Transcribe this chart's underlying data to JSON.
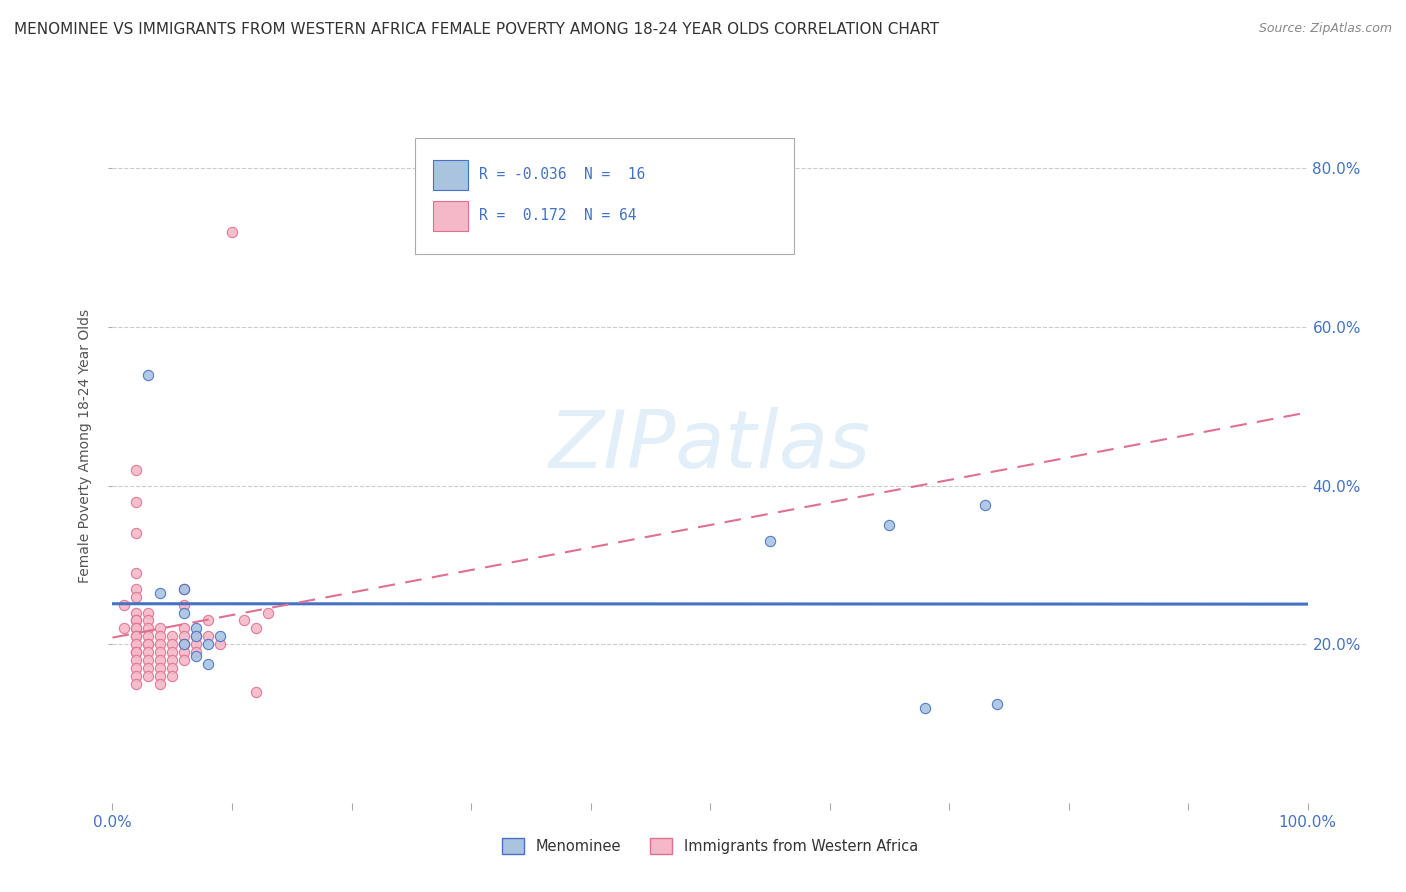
{
  "title": "MENOMINEE VS IMMIGRANTS FROM WESTERN AFRICA FEMALE POVERTY AMONG 18-24 YEAR OLDS CORRELATION CHART",
  "source": "Source: ZipAtlas.com",
  "ylabel": "Female Poverty Among 18-24 Year Olds",
  "xlim": [
    0.0,
    1.0
  ],
  "ylim": [
    0.0,
    0.9
  ],
  "xticks": [
    0.0,
    0.1,
    0.2,
    0.3,
    0.4,
    0.5,
    0.6,
    0.7,
    0.8,
    0.9,
    1.0
  ],
  "xticklabels_show": {
    "0.0": "0.0%",
    "1.0": "100.0%"
  },
  "ytick_positions": [
    0.2,
    0.4,
    0.6,
    0.8
  ],
  "ytick_labels": [
    "20.0%",
    "40.0%",
    "60.0%",
    "80.0%"
  ],
  "watermark": "ZIPatlas",
  "blue_color": "#4472c4",
  "pink_color": "#e07090",
  "blue_scatter_color": "#aac4e0",
  "pink_scatter_color": "#f4b8c8",
  "blue_points": [
    [
      0.03,
      0.54
    ],
    [
      0.04,
      0.265
    ],
    [
      0.06,
      0.27
    ],
    [
      0.06,
      0.24
    ],
    [
      0.06,
      0.2
    ],
    [
      0.07,
      0.22
    ],
    [
      0.07,
      0.21
    ],
    [
      0.07,
      0.185
    ],
    [
      0.08,
      0.2
    ],
    [
      0.08,
      0.175
    ],
    [
      0.09,
      0.21
    ],
    [
      0.55,
      0.33
    ],
    [
      0.65,
      0.35
    ],
    [
      0.73,
      0.375
    ],
    [
      0.68,
      0.12
    ],
    [
      0.74,
      0.125
    ]
  ],
  "pink_points": [
    [
      0.01,
      0.25
    ],
    [
      0.01,
      0.22
    ],
    [
      0.02,
      0.42
    ],
    [
      0.02,
      0.38
    ],
    [
      0.02,
      0.34
    ],
    [
      0.02,
      0.29
    ],
    [
      0.02,
      0.27
    ],
    [
      0.02,
      0.26
    ],
    [
      0.02,
      0.24
    ],
    [
      0.02,
      0.23
    ],
    [
      0.02,
      0.23
    ],
    [
      0.02,
      0.22
    ],
    [
      0.02,
      0.22
    ],
    [
      0.02,
      0.21
    ],
    [
      0.02,
      0.21
    ],
    [
      0.02,
      0.2
    ],
    [
      0.02,
      0.19
    ],
    [
      0.02,
      0.19
    ],
    [
      0.02,
      0.18
    ],
    [
      0.02,
      0.17
    ],
    [
      0.02,
      0.16
    ],
    [
      0.02,
      0.15
    ],
    [
      0.03,
      0.24
    ],
    [
      0.03,
      0.23
    ],
    [
      0.03,
      0.22
    ],
    [
      0.03,
      0.21
    ],
    [
      0.03,
      0.2
    ],
    [
      0.03,
      0.2
    ],
    [
      0.03,
      0.19
    ],
    [
      0.03,
      0.18
    ],
    [
      0.03,
      0.17
    ],
    [
      0.03,
      0.16
    ],
    [
      0.04,
      0.22
    ],
    [
      0.04,
      0.21
    ],
    [
      0.04,
      0.2
    ],
    [
      0.04,
      0.19
    ],
    [
      0.04,
      0.18
    ],
    [
      0.04,
      0.17
    ],
    [
      0.04,
      0.16
    ],
    [
      0.04,
      0.15
    ],
    [
      0.05,
      0.21
    ],
    [
      0.05,
      0.2
    ],
    [
      0.05,
      0.19
    ],
    [
      0.05,
      0.18
    ],
    [
      0.05,
      0.17
    ],
    [
      0.05,
      0.16
    ],
    [
      0.06,
      0.27
    ],
    [
      0.06,
      0.25
    ],
    [
      0.06,
      0.22
    ],
    [
      0.06,
      0.21
    ],
    [
      0.06,
      0.2
    ],
    [
      0.06,
      0.19
    ],
    [
      0.06,
      0.18
    ],
    [
      0.07,
      0.21
    ],
    [
      0.07,
      0.2
    ],
    [
      0.07,
      0.19
    ],
    [
      0.08,
      0.23
    ],
    [
      0.08,
      0.21
    ],
    [
      0.09,
      0.2
    ],
    [
      0.1,
      0.72
    ],
    [
      0.11,
      0.23
    ],
    [
      0.12,
      0.22
    ],
    [
      0.12,
      0.14
    ],
    [
      0.13,
      0.24
    ]
  ],
  "background_color": "#ffffff",
  "grid_color": "#cccccc",
  "title_fontsize": 11,
  "axis_fontsize": 10,
  "tick_fontsize": 11,
  "scatter_size": 55,
  "legend_R_blue": "-0.036",
  "legend_N_blue": "16",
  "legend_R_pink": "0.172",
  "legend_N_pink": "64"
}
